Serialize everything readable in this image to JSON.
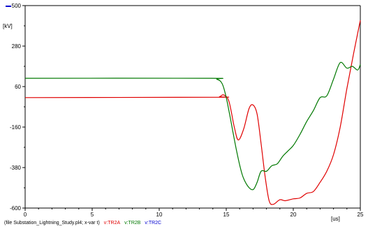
{
  "chart_data": {
    "type": "line",
    "unit_label": "[kV]",
    "x_unit_label": "[us]",
    "xlim": [
      0,
      25
    ],
    "ylim": [
      -600,
      500
    ],
    "x_ticks": [
      0,
      5,
      10,
      15,
      20,
      25
    ],
    "y_ticks": [
      500,
      280,
      60,
      -160,
      -380,
      -600
    ],
    "y_tick_labels": [
      "500",
      "280",
      "60",
      "-160",
      "-380",
      "-600"
    ],
    "grid": false,
    "series": [
      {
        "name": "v:TR2A",
        "color": "#e00000",
        "x": [
          0,
          14.0,
          14.5,
          14.8,
          15.2,
          15.6,
          15.9,
          16.3,
          16.7,
          17.0,
          17.3,
          17.6,
          17.9,
          18.2,
          18.5,
          19.0,
          19.4,
          20.0,
          20.5,
          21.0,
          21.5,
          22.0,
          22.5,
          23.0,
          23.5,
          24.0,
          24.5,
          25.0
        ],
        "y": [
          0,
          2,
          5,
          15,
          -20,
          -160,
          -230,
          -170,
          -60,
          -40,
          -90,
          -250,
          -430,
          -560,
          -580,
          -555,
          -560,
          -550,
          -545,
          -520,
          -510,
          -460,
          -400,
          -310,
          -160,
          50,
          240,
          420
        ]
      },
      {
        "name": "v:TR2B",
        "color": "#007800",
        "x": [
          0,
          13.5,
          14.3,
          14.7,
          15.0,
          15.3,
          15.8,
          16.2,
          16.6,
          17.0,
          17.3,
          17.6,
          18.0,
          18.4,
          18.8,
          19.2,
          19.6,
          20.0,
          20.5,
          21.0,
          21.5,
          22.0,
          22.5,
          23.0,
          23.5,
          24.0,
          24.4,
          24.8,
          25.0
        ],
        "y": [
          105,
          105,
          100,
          75,
          0,
          -110,
          -300,
          -420,
          -480,
          -500,
          -460,
          -400,
          -400,
          -370,
          -360,
          -320,
          -290,
          -260,
          -200,
          -130,
          -70,
          0,
          10,
          100,
          190,
          160,
          170,
          150,
          180
        ]
      },
      {
        "name": "v:TR2C",
        "color": "#0000d0",
        "x": [],
        "y": []
      }
    ]
  },
  "footer": {
    "file_label": "(file Substation_Lightning_Study.pl4; x-var t)"
  }
}
